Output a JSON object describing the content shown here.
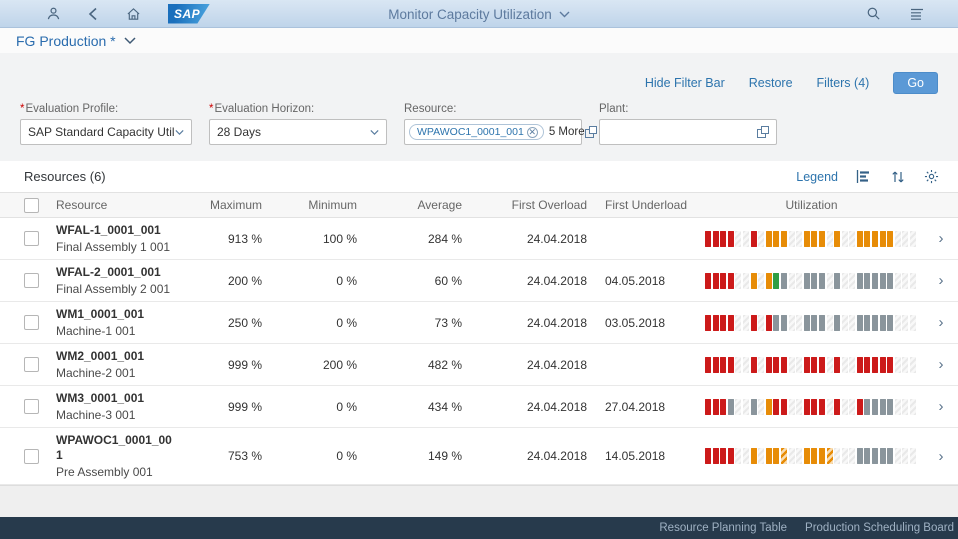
{
  "shell": {
    "title": "Monitor Capacity Utilization",
    "logo_text": "SAP"
  },
  "variant": {
    "title": "FG Production *"
  },
  "filterbar": {
    "required_indicator": "*",
    "actions": {
      "hide_filter_bar": "Hide Filter Bar",
      "restore": "Restore",
      "filters": "Filters (4)",
      "go": "Go"
    },
    "evaluation_profile": {
      "label": "Evaluation Profile:",
      "value": "SAP Standard Capacity Utilizat..."
    },
    "evaluation_horizon": {
      "label": "Evaluation Horizon:",
      "value": "28 Days"
    },
    "resource": {
      "label": "Resource:",
      "token": "WPAWOC1_0001_001",
      "more": "5 More"
    },
    "plant": {
      "label": "Plant:",
      "value": ""
    }
  },
  "table": {
    "title": "Resources (6)",
    "legend_label": "Legend",
    "columns": [
      "Resource",
      "Maximum",
      "Minimum",
      "Average",
      "First Overload",
      "First Underload",
      "Utilization"
    ],
    "rows": [
      {
        "name": "WFAL-1_0001_001",
        "desc": "Final Assembly 1 001",
        "max": "913 %",
        "min": "100 %",
        "avg": "284 %",
        "overload": "24.04.2018",
        "underload": "",
        "bars": "rrrrhhrhooohhooohohhooooohhh"
      },
      {
        "name": "WFAL-2_0001_001",
        "desc": "Final Assembly 2 001",
        "max": "200 %",
        "min": "0 %",
        "avg": "60 %",
        "overload": "24.04.2018",
        "underload": "04.05.2018",
        "bars": "rrrrhhohognhhnnnhnhhnnnnnhhh"
      },
      {
        "name": "WM1_0001_001",
        "desc": "Machine-1 001",
        "max": "250 %",
        "min": "0 %",
        "avg": "73 %",
        "overload": "24.04.2018",
        "underload": "03.05.2018",
        "bars": "rrrrhhrhrnnhhnnnhnhhnnnnnhhh"
      },
      {
        "name": "WM2_0001_001",
        "desc": "Machine-2 001",
        "max": "999 %",
        "min": "200 %",
        "avg": "482 %",
        "overload": "24.04.2018",
        "underload": "",
        "bars": "rrrrhhrhrrrhhrrrhrhhrrrrrhhh"
      },
      {
        "name": "WM3_0001_001",
        "desc": "Machine-3 001",
        "max": "999 %",
        "min": "0 %",
        "avg": "434 %",
        "overload": "24.04.2018",
        "underload": "27.04.2018",
        "bars": "rrrnhhnhorrhhrrrhrhhrnnnnhhh"
      },
      {
        "name": "WPAWOC1_0001_001",
        "desc": "Pre Assembly 001",
        "max": "753 %",
        "min": "0 %",
        "avg": "149 %",
        "overload": "24.04.2018",
        "underload": "14.05.2018",
        "bars": "rrrrhhohooshhoooshhhnnnnnhhh"
      }
    ]
  },
  "footer": {
    "links": [
      "Resource Planning Table",
      "Production Scheduling Board"
    ]
  },
  "colors": {
    "overload_red": "#cc1a1a",
    "critical_orange": "#e78c07",
    "good_green": "#2f9e44",
    "neutral_gray": "#8a959c",
    "accent_blue": "#2d74ad",
    "header_blue": "#c7d9ec",
    "footer_dark": "#273a4c"
  }
}
